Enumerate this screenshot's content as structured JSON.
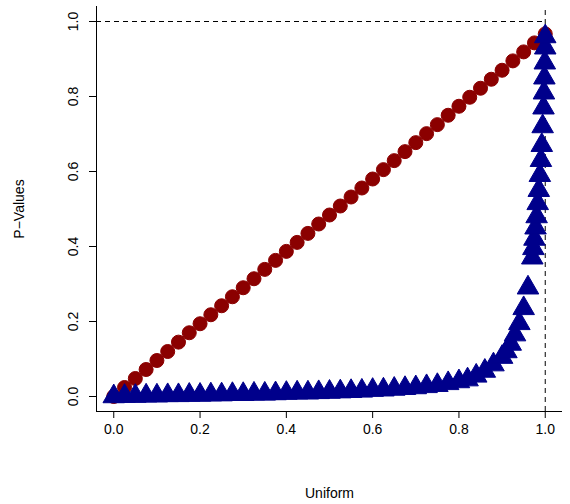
{
  "chart_data": {
    "type": "scatter",
    "x_label": "Uniform",
    "y_label": "P−Values",
    "xlim": [
      -0.04,
      1.04
    ],
    "ylim": [
      -0.04,
      1.04
    ],
    "xticks": [
      {
        "value": 0,
        "label": "0.0"
      },
      0.2,
      0.4,
      0.6,
      0.8,
      {
        "value": 1,
        "label": "1.0"
      }
    ],
    "yticks": [
      {
        "value": 0,
        "label": "0.0"
      },
      0.2,
      0.4,
      0.6,
      0.8,
      {
        "value": 1,
        "label": "1.0"
      }
    ],
    "reference_lines": {
      "x": 1,
      "y": 1
    },
    "series": [
      {
        "color": "#8b0000",
        "marker": "circle",
        "x": [
          0,
          0.025,
          0.05,
          0.075,
          0.1,
          0.125,
          0.15,
          0.175,
          0.2,
          0.225,
          0.25,
          0.275,
          0.3,
          0.325,
          0.35,
          0.375,
          0.4,
          0.425,
          0.45,
          0.475,
          0.5,
          0.525,
          0.55,
          0.575,
          0.6,
          0.625,
          0.65,
          0.675,
          0.7,
          0.725,
          0.75,
          0.775,
          0.8,
          0.825,
          0.85,
          0.875,
          0.9,
          0.925,
          0.95,
          0.975,
          1
        ],
        "values": [
          0,
          0.024,
          0.048,
          0.072,
          0.096,
          0.12,
          0.145,
          0.17,
          0.194,
          0.218,
          0.242,
          0.266,
          0.29,
          0.314,
          0.339,
          0.363,
          0.387,
          0.411,
          0.435,
          0.46,
          0.484,
          0.508,
          0.532,
          0.556,
          0.58,
          0.605,
          0.629,
          0.653,
          0.677,
          0.701,
          0.725,
          0.75,
          0.774,
          0.798,
          0.822,
          0.846,
          0.87,
          0.895,
          0.919,
          0.943,
          0.967
        ]
      },
      {
        "color": "#00008b",
        "marker": "triangle",
        "x": [
          0,
          0.025,
          0.05,
          0.075,
          0.1,
          0.125,
          0.15,
          0.175,
          0.2,
          0.225,
          0.25,
          0.275,
          0.3,
          0.325,
          0.35,
          0.375,
          0.4,
          0.425,
          0.45,
          0.475,
          0.5,
          0.525,
          0.55,
          0.575,
          0.6,
          0.625,
          0.65,
          0.675,
          0.7,
          0.725,
          0.75,
          0.775,
          0.8,
          0.82,
          0.84,
          0.86,
          0.88,
          0.9,
          0.91,
          0.92,
          0.93,
          0.94,
          0.95,
          0.96,
          0.97,
          0.9725,
          0.975,
          0.9775,
          0.98,
          0.9825,
          0.985,
          0.9875,
          0.99,
          0.992,
          0.994,
          0.996,
          0.997,
          0.998,
          0.999,
          1,
          1
        ],
        "values": [
          0,
          0.001,
          0.001,
          0.002,
          0.002,
          0.003,
          0.003,
          0.004,
          0.004,
          0.005,
          0.005,
          0.006,
          0.006,
          0.007,
          0.007,
          0.008,
          0.009,
          0.01,
          0.01,
          0.011,
          0.012,
          0.013,
          0.014,
          0.015,
          0.017,
          0.018,
          0.02,
          0.022,
          0.024,
          0.027,
          0.03,
          0.035,
          0.04,
          0.045,
          0.055,
          0.068,
          0.085,
          0.105,
          0.12,
          0.14,
          0.165,
          0.195,
          0.235,
          0.29,
          0.37,
          0.395,
          0.42,
          0.45,
          0.48,
          0.515,
          0.55,
          0.59,
          0.63,
          0.67,
          0.72,
          0.77,
          0.81,
          0.85,
          0.89,
          0.93,
          0.96
        ]
      }
    ]
  }
}
